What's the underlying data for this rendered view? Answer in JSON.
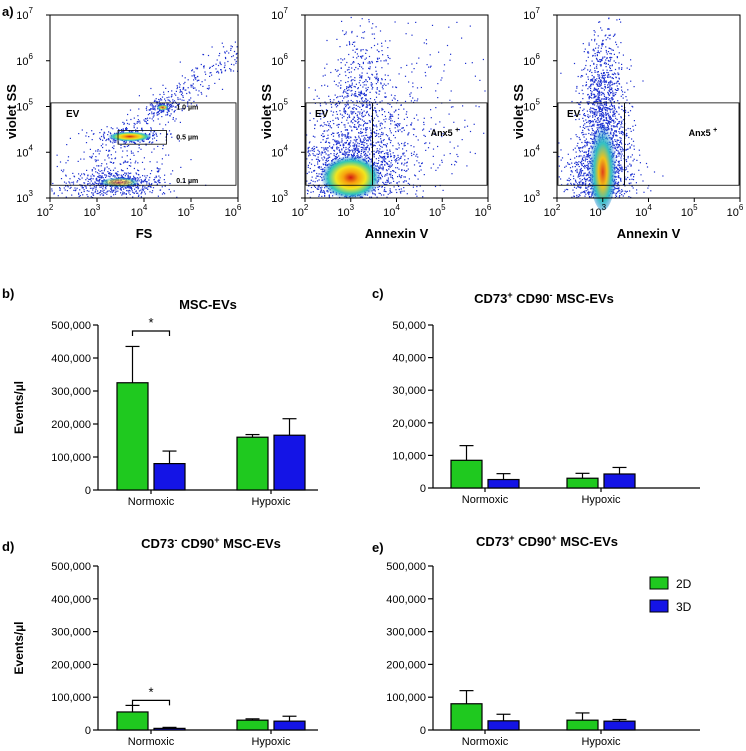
{
  "figure": {
    "panel_a": {
      "label": "a)",
      "plots": [
        {
          "xlabel": "FS",
          "ylabel": "violet SS",
          "x_ticks": [
            "10",
            "10",
            "10",
            "10",
            "10"
          ],
          "x_exps": [
            "2",
            "3",
            "4",
            "5",
            "6"
          ],
          "y_ticks": [
            "10",
            "10",
            "10",
            "10",
            "10"
          ],
          "y_exps": [
            "3",
            "4",
            "5",
            "6",
            "7"
          ],
          "gate_labels": [
            "EV",
            "1.0 µm",
            "0.5 µm",
            "0.1 µm"
          ]
        },
        {
          "xlabel": "Annexin V",
          "ylabel": "violet SS",
          "x_ticks": [
            "10",
            "10",
            "10",
            "10",
            "10"
          ],
          "x_exps": [
            "2",
            "3",
            "4",
            "5",
            "6"
          ],
          "y_ticks": [
            "10",
            "10",
            "10",
            "10",
            "10"
          ],
          "y_exps": [
            "3",
            "4",
            "5",
            "6",
            "7"
          ],
          "gate_labels": [
            "EV",
            "Anx5 +"
          ]
        },
        {
          "xlabel": "Annexin V",
          "ylabel": "violet SS",
          "x_ticks": [
            "10",
            "10",
            "10",
            "10",
            "10"
          ],
          "x_exps": [
            "2",
            "3",
            "4",
            "5",
            "6"
          ],
          "y_ticks": [
            "10",
            "10",
            "10",
            "10",
            "10"
          ],
          "y_exps": [
            "3",
            "4",
            "5",
            "6",
            "7"
          ],
          "gate_labels": [
            "EV",
            "Anx5 +"
          ]
        }
      ]
    },
    "legend": {
      "items": [
        {
          "name": "2D",
          "color": "#1fc91f"
        },
        {
          "name": "3D",
          "color": "#1414e6"
        }
      ]
    },
    "significance_mark": "*"
  },
  "chart_data": [
    {
      "type": "scatter",
      "panel": "a) left",
      "title": "",
      "xlabel": "FS",
      "ylabel": "violet SS",
      "xscale": "log",
      "yscale": "log",
      "xlim": [
        100,
        1000000
      ],
      "ylim": [
        1000,
        10000000
      ],
      "gates": [
        "EV",
        "1.0 µm",
        "0.5 µm",
        "0.1 µm"
      ],
      "clusters": [
        {
          "name": "0.1 µm",
          "x": 2000,
          "y": 2500
        },
        {
          "name": "0.5 µm",
          "x": 7000,
          "y": 22000
        },
        {
          "name": "1.0 µm",
          "x": 20000,
          "y": 90000
        }
      ]
    },
    {
      "type": "scatter",
      "panel": "a) middle",
      "title": "",
      "xlabel": "Annexin V",
      "ylabel": "violet SS",
      "xscale": "log",
      "yscale": "log",
      "xlim": [
        100,
        1000000
      ],
      "ylim": [
        1000,
        10000000
      ],
      "gates": [
        "EV",
        "Anx5 +"
      ],
      "clusters": [
        {
          "name": "EV",
          "x": 1000,
          "y": 3000
        }
      ]
    },
    {
      "type": "scatter",
      "panel": "a) right",
      "title": "",
      "xlabel": "Annexin V",
      "ylabel": "violet SS",
      "xscale": "log",
      "yscale": "log",
      "xlim": [
        100,
        1000000
      ],
      "ylim": [
        1000,
        10000000
      ],
      "gates": [
        "EV",
        "Anx5 +"
      ],
      "clusters": [
        {
          "name": "EV",
          "x": 1000,
          "y": 8000
        }
      ]
    },
    {
      "type": "bar",
      "panel_label": "b)",
      "title": "MSC-EVs",
      "title_parts": [
        {
          "t": "MSC-EVs"
        }
      ],
      "ylabel": "Events/µl",
      "categories": [
        "Normoxic",
        "Hypoxic"
      ],
      "ylim": [
        0,
        500000
      ],
      "yticks": [
        0,
        100000,
        200000,
        300000,
        400000,
        500000
      ],
      "ytick_labels": [
        "0",
        "100,000",
        "200,000",
        "300,000",
        "400,000",
        "500,000"
      ],
      "series": [
        {
          "name": "2D",
          "values": [
            325000,
            160000
          ],
          "errors": [
            110000,
            8000
          ]
        },
        {
          "name": "3D",
          "values": [
            80000,
            166000
          ],
          "errors": [
            38000,
            50000
          ]
        }
      ],
      "significance": [
        {
          "category": "Normoxic",
          "label": "*"
        }
      ]
    },
    {
      "type": "bar",
      "panel_label": "c)",
      "title": "CD73+ CD90- MSC-EVs",
      "title_parts": [
        {
          "t": "CD73"
        },
        {
          "t": "+",
          "sup": true
        },
        {
          "t": " CD90"
        },
        {
          "t": "-",
          "sup": true
        },
        {
          "t": "  MSC-EVs"
        }
      ],
      "ylabel": "",
      "categories": [
        "Normoxic",
        "Hypoxic"
      ],
      "ylim": [
        0,
        50000
      ],
      "yticks": [
        0,
        10000,
        20000,
        30000,
        40000,
        50000
      ],
      "ytick_labels": [
        "0",
        "10,000",
        "20,000",
        "30,000",
        "40,000",
        "50,000"
      ],
      "series": [
        {
          "name": "2D",
          "values": [
            8500,
            3000
          ],
          "errors": [
            4500,
            1500
          ]
        },
        {
          "name": "3D",
          "values": [
            2600,
            4300
          ],
          "errors": [
            1800,
            2000
          ]
        }
      ],
      "significance": []
    },
    {
      "type": "bar",
      "panel_label": "d)",
      "title": "CD73- CD90+ MSC-EVs",
      "title_parts": [
        {
          "t": "CD73"
        },
        {
          "t": "-",
          "sup": true
        },
        {
          "t": " CD90"
        },
        {
          "t": "+",
          "sup": true
        },
        {
          "t": " MSC-EVs"
        }
      ],
      "ylabel": "Events/µl",
      "categories": [
        "Normoxic",
        "Hypoxic"
      ],
      "ylim": [
        0,
        500000
      ],
      "yticks": [
        0,
        100000,
        200000,
        300000,
        400000,
        500000
      ],
      "ytick_labels": [
        "0",
        "100,000",
        "200,000",
        "300,000",
        "400,000",
        "500,000"
      ],
      "series": [
        {
          "name": "2D",
          "values": [
            55000,
            30000
          ],
          "errors": [
            20000,
            4000
          ]
        },
        {
          "name": "3D",
          "values": [
            5000,
            27000
          ],
          "errors": [
            3000,
            15000
          ]
        }
      ],
      "significance": [
        {
          "category": "Normoxic",
          "label": "*"
        }
      ]
    },
    {
      "type": "bar",
      "panel_label": "e)",
      "title": "CD73+ CD90+ MSC-EVs",
      "title_parts": [
        {
          "t": "CD73"
        },
        {
          "t": "+",
          "sup": true
        },
        {
          "t": " CD90"
        },
        {
          "t": "+",
          "sup": true
        },
        {
          "t": " MSC-EVs"
        }
      ],
      "ylabel": "",
      "categories": [
        "Normoxic",
        "Hypoxic"
      ],
      "ylim": [
        0,
        500000
      ],
      "yticks": [
        0,
        100000,
        200000,
        300000,
        400000,
        500000
      ],
      "ytick_labels": [
        "0",
        "100,000",
        "200,000",
        "300,000",
        "400,000",
        "500,000"
      ],
      "series": [
        {
          "name": "2D",
          "values": [
            80000,
            30000
          ],
          "errors": [
            40000,
            22000
          ]
        },
        {
          "name": "3D",
          "values": [
            28000,
            27000
          ],
          "errors": [
            20000,
            5000
          ]
        }
      ],
      "significance": [],
      "legend": true
    }
  ]
}
